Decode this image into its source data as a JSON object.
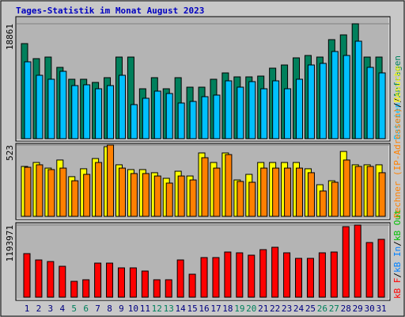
{
  "title": "Tages-Statistik im Monat August 2023",
  "chart_data": [
    {
      "type": "bar",
      "ylim": [
        0,
        18861
      ],
      "yticks": [
        18861
      ],
      "series": [
        {
          "name": "Anfragen",
          "color": "#00805c",
          "values": [
            15609,
            13138,
            13398,
            11707,
            9756,
            9756,
            9236,
            10016,
            13398,
            13398,
            8195,
            10016,
            8195,
            10016,
            8455,
            8455,
            9756,
            10796,
            10146,
            10146,
            10276,
            11577,
            12097,
            13268,
            13658,
            13398,
            16259,
            17040,
            18861,
            13398,
            13398
          ]
        },
        {
          "name": "Dateien",
          "color": "#00c0ff",
          "values": [
            12620,
            10408,
            9758,
            11059,
            8717,
            8847,
            8196,
            8717,
            10408,
            5594,
            6635,
            7806,
            7416,
            5855,
            6115,
            6895,
            7156,
            9497,
            8457,
            9367,
            8196,
            9497,
            8196,
            9758,
            12099,
            12360,
            14311,
            13661,
            16002,
            11709,
            10798
          ]
        }
      ],
      "separator": "/"
    },
    {
      "type": "bar",
      "ylim": [
        0,
        523
      ],
      "yticks": [
        523
      ],
      "series": [
        {
          "name": "Besuche",
          "color": "#ffff00",
          "values": [
            366,
            395,
            354,
            413,
            291,
            349,
            424,
            511,
            378,
            343,
            343,
            320,
            279,
            331,
            296,
            465,
            395,
            465,
            267,
            308,
            395,
            395,
            395,
            395,
            349,
            232,
            261,
            476,
            378,
            378,
            378
          ]
        },
        {
          "name": "Rechner (IP-Adressen)",
          "color": "#ff8000",
          "values": [
            360,
            378,
            343,
            354,
            261,
            308,
            395,
            523,
            354,
            314,
            314,
            296,
            244,
            296,
            267,
            430,
            354,
            453,
            256,
            250,
            354,
            354,
            354,
            354,
            320,
            186,
            250,
            413,
            366,
            366,
            320
          ]
        }
      ],
      "separator": "/"
    },
    {
      "type": "bar",
      "ylim": [
        0,
        1193971
      ],
      "yticks": [
        1193971
      ],
      "series": [
        {
          "name": "kB F",
          "color": "#ff0000",
          "values": [
            721600,
            616640,
            590400,
            511680,
            262400,
            288640,
            564160,
            564160,
            485440,
            485440,
            432960,
            288640,
            288640,
            616640,
            380480,
            656000,
            656000,
            747840,
            734720,
            695360,
            787200,
            826560,
            734720,
            642880,
            642880,
            734720,
            747840,
            1167680,
            1193971,
            905280,
            957760
          ]
        }
      ],
      "legend_only": [
        {
          "name": "kB In",
          "color": "#0080ff"
        },
        {
          "name": "kB Out",
          "color": "#00c000"
        }
      ],
      "separator": "/"
    }
  ],
  "categories": [
    "1",
    "2",
    "3",
    "4",
    "5",
    "6",
    "7",
    "8",
    "9",
    "10",
    "11",
    "12",
    "13",
    "14",
    "15",
    "16",
    "17",
    "18",
    "19",
    "20",
    "21",
    "22",
    "23",
    "24",
    "25",
    "26",
    "27",
    "28",
    "29",
    "30",
    "31"
  ],
  "category_colors": [
    "#000080",
    "#000080",
    "#000080",
    "#000080",
    "#00805c",
    "#00805c",
    "#000080",
    "#000080",
    "#000080",
    "#000080",
    "#000080",
    "#00805c",
    "#00805c",
    "#000080",
    "#000080",
    "#000080",
    "#000080",
    "#000080",
    "#00805c",
    "#00805c",
    "#000080",
    "#000080",
    "#000080",
    "#000080",
    "#000080",
    "#00805c",
    "#00805c",
    "#000080",
    "#000080",
    "#000080",
    "#000080"
  ]
}
